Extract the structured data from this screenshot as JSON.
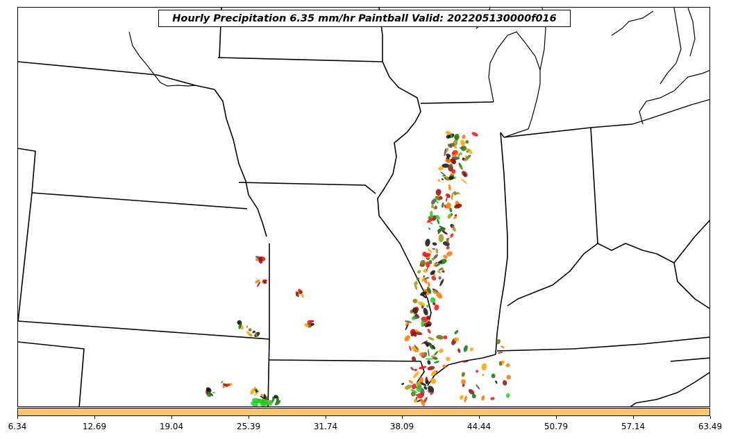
{
  "title": "Hourly Precipitation 6.35 mm/hr Paintball Valid: 202205130000f016",
  "colorbar": {
    "color": "#ffc56e",
    "ticks": [
      "6.34",
      "12.69",
      "19.04",
      "25.39",
      "31.74",
      "38.09",
      "44.44",
      "50.79",
      "57.14",
      "63.49"
    ]
  },
  "member_colors": [
    "#ee1111",
    "#ff7700",
    "#ffa500",
    "#9a9a1a",
    "#6b6b12",
    "#117711",
    "#22cc22",
    "#111111",
    "#555555",
    "#8b1111"
  ]
}
